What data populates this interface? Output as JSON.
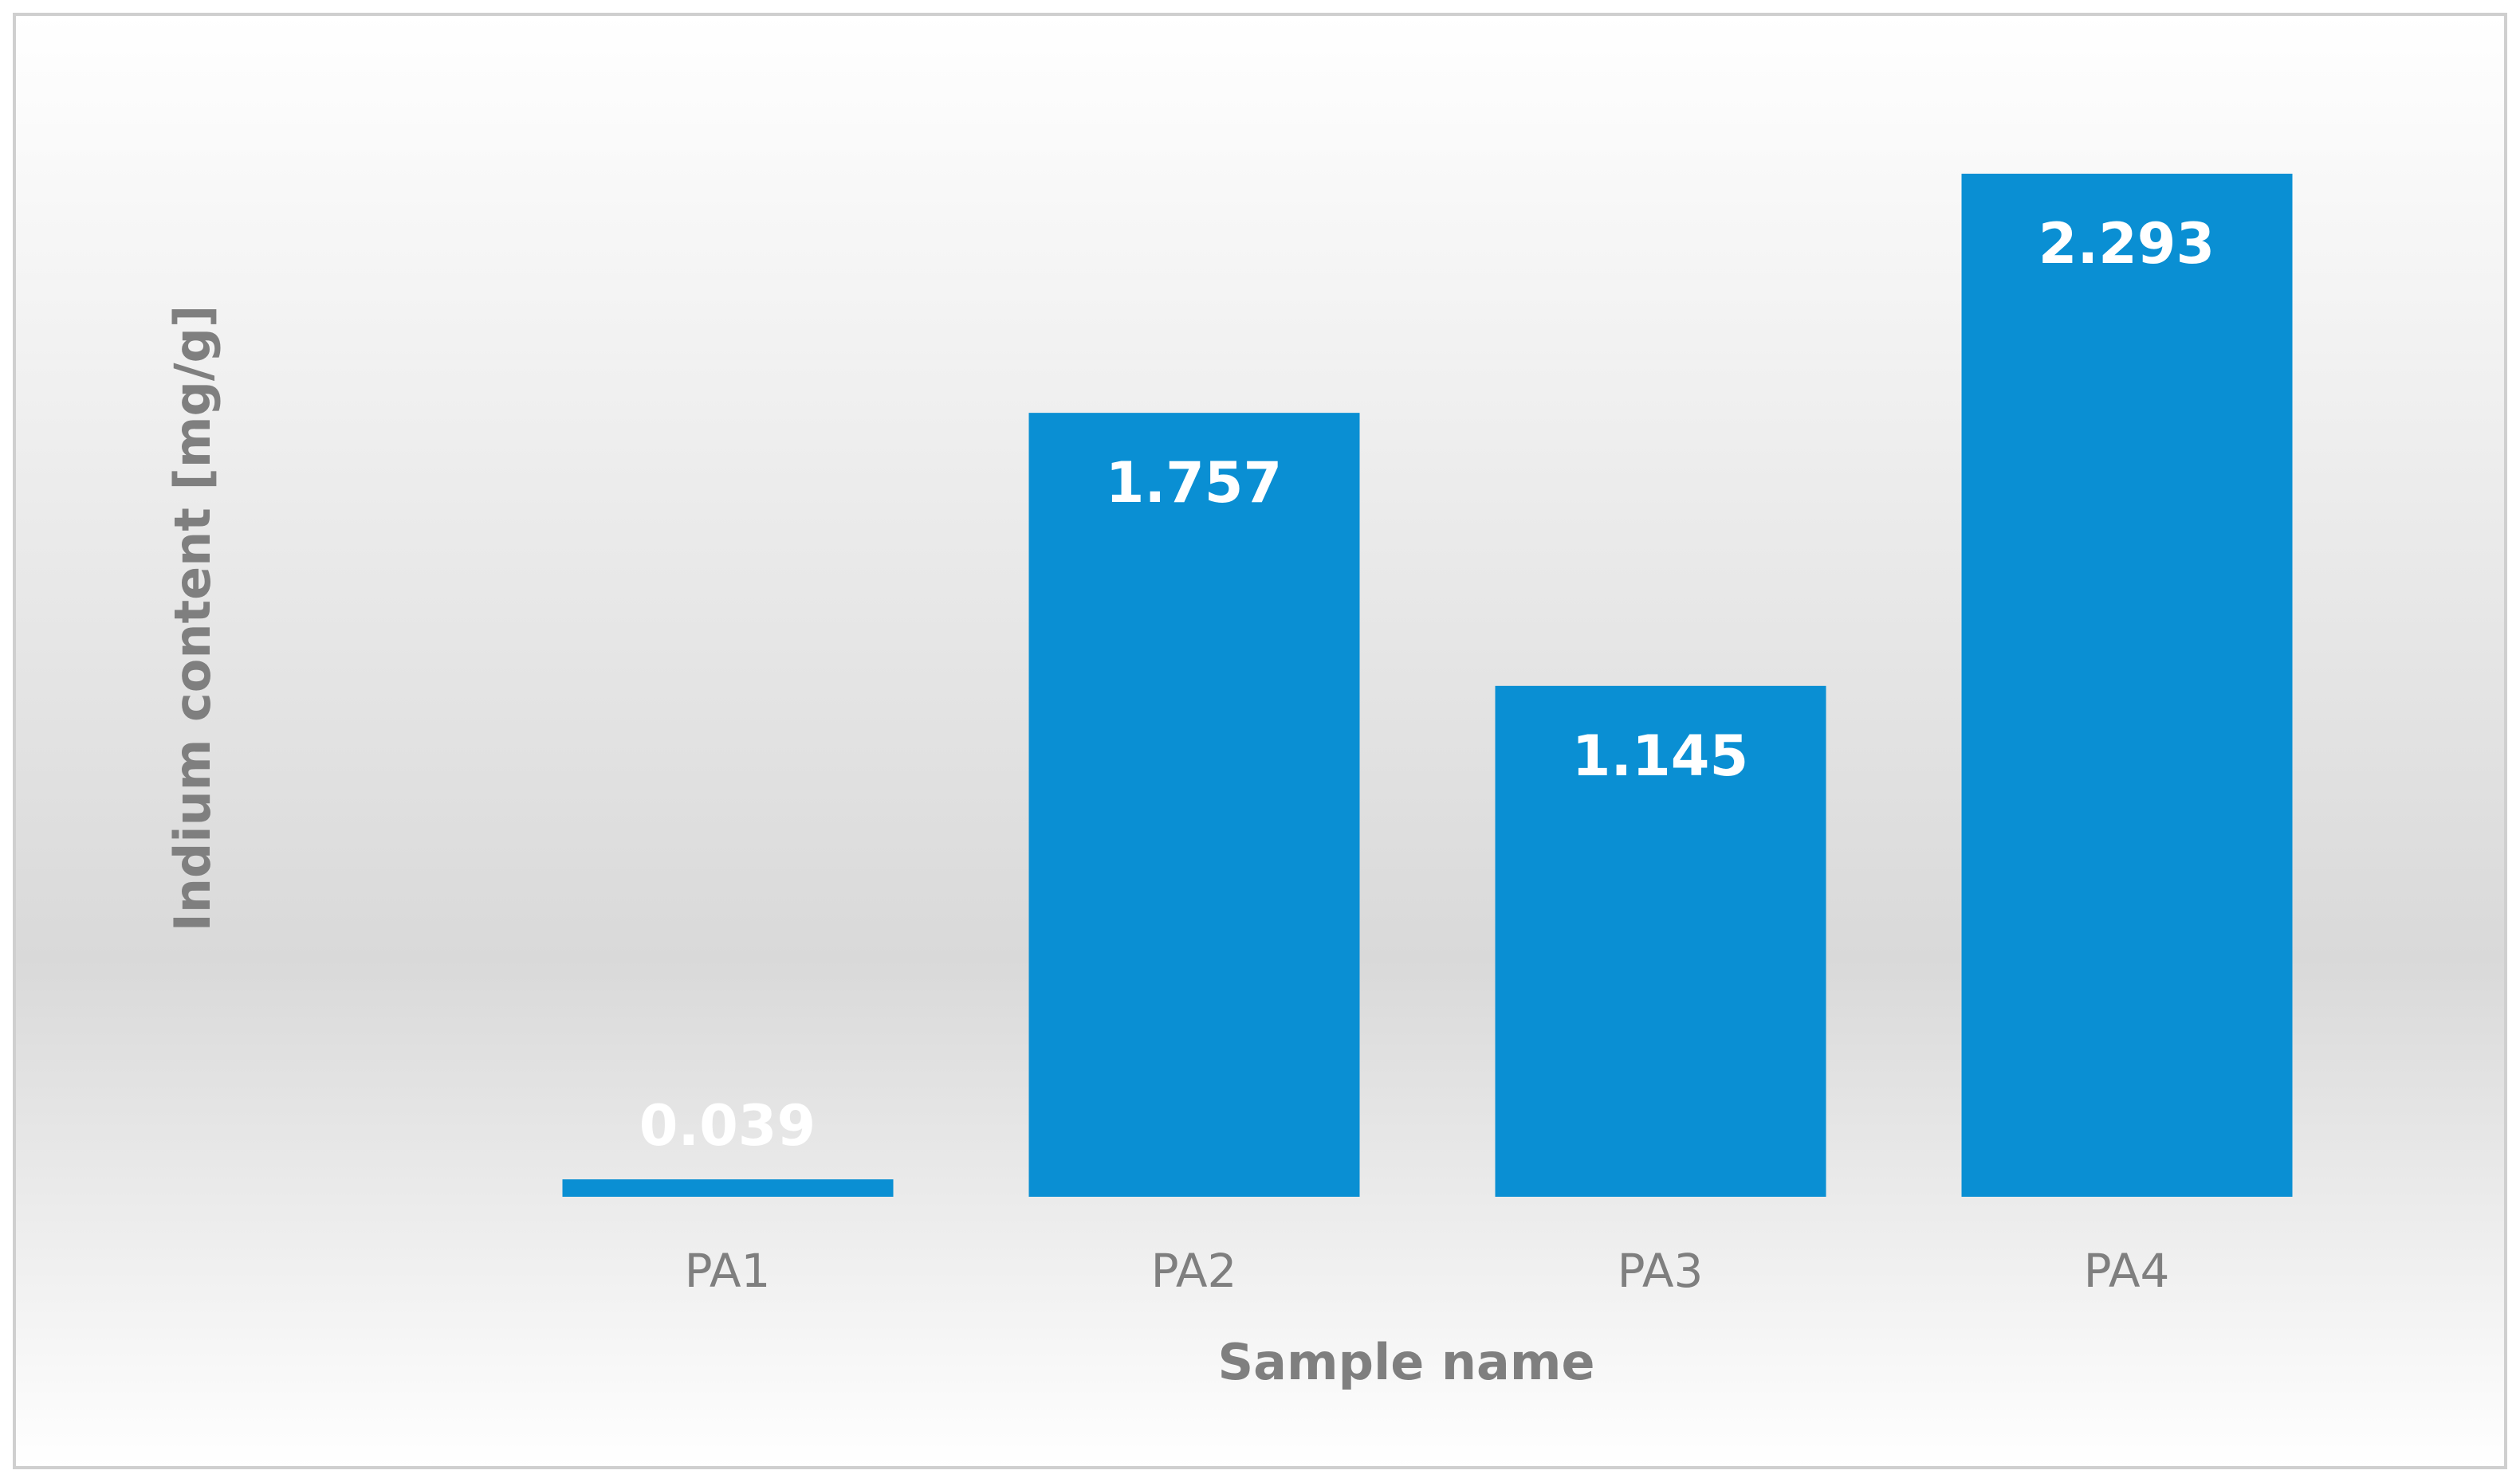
{
  "chart_data": {
    "type": "bar",
    "categories": [
      "PA1",
      "PA2",
      "PA3",
      "PA4"
    ],
    "values": [
      0.039,
      1.757,
      1.145,
      2.293
    ],
    "color": "#0a8fd3",
    "xlabel": "Sample name",
    "ylabel": "Indium content [mg/g]"
  }
}
